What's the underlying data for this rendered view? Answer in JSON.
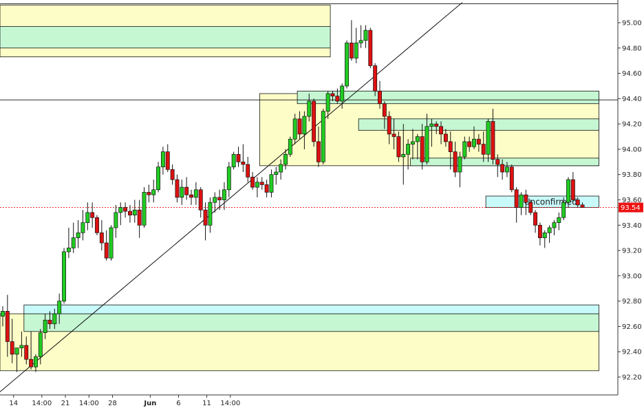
{
  "chart_data": {
    "type": "candlestick",
    "y_axis": {
      "position": "right",
      "ylim": [
        92.06,
        95.16
      ],
      "ticks": [
        "95.00",
        "94.80",
        "94.60",
        "94.40",
        "94.20",
        "94.00",
        "93.80",
        "93.60",
        "93.40",
        "93.20",
        "93.00",
        "92.80",
        "92.60",
        "92.40",
        "92.20"
      ]
    },
    "x_axis": {
      "tick_labels": [
        "14",
        "14:00",
        "21",
        "14:00",
        "28",
        "Jun",
        "6",
        "11",
        "14:00"
      ],
      "tick_index": [
        2,
        8,
        13,
        18,
        23,
        31,
        37,
        43,
        48
      ],
      "bold": [
        "Jun"
      ]
    },
    "current_price": {
      "value": 93.54,
      "label": "93.54",
      "color": "#ee1111"
    },
    "colors": {
      "up": "#22cc22",
      "down": "#dd1111",
      "supply_zone": "#fdfdc7",
      "demand_zone": "#c6f7d3",
      "pending_zone": "#c9fafa"
    },
    "candles": [
      [
        92.68,
        92.76,
        92.6,
        92.72
      ],
      [
        92.72,
        92.85,
        92.36,
        92.48
      ],
      [
        92.48,
        92.66,
        92.31,
        92.38
      ],
      [
        92.38,
        92.43,
        92.24,
        92.43
      ],
      [
        92.43,
        92.56,
        92.36,
        92.45
      ],
      [
        92.45,
        92.52,
        92.3,
        92.34
      ],
      [
        92.34,
        92.56,
        92.26,
        92.28
      ],
      [
        92.28,
        92.38,
        92.24,
        92.36
      ],
      [
        92.36,
        92.58,
        92.3,
        92.55
      ],
      [
        92.55,
        92.7,
        92.5,
        92.65
      ],
      [
        92.65,
        92.72,
        92.58,
        92.62
      ],
      [
        92.62,
        92.74,
        92.58,
        92.7
      ],
      [
        92.7,
        92.86,
        92.62,
        92.8
      ],
      [
        92.8,
        93.22,
        92.78,
        93.19
      ],
      [
        93.19,
        93.38,
        93.14,
        93.22
      ],
      [
        93.22,
        93.42,
        93.18,
        93.3
      ],
      [
        93.3,
        93.44,
        93.22,
        93.34
      ],
      [
        93.34,
        93.52,
        93.28,
        93.42
      ],
      [
        93.42,
        93.58,
        93.36,
        93.5
      ],
      [
        93.5,
        93.58,
        93.38,
        93.46
      ],
      [
        93.46,
        93.48,
        93.32,
        93.34
      ],
      [
        93.34,
        93.44,
        93.2,
        93.26
      ],
      [
        93.26,
        93.36,
        93.12,
        93.14
      ],
      [
        93.14,
        93.4,
        93.12,
        93.38
      ],
      [
        93.38,
        93.56,
        93.3,
        93.5
      ],
      [
        93.5,
        93.58,
        93.4,
        93.54
      ],
      [
        93.54,
        93.58,
        93.46,
        93.51
      ],
      [
        93.51,
        93.56,
        93.42,
        93.48
      ],
      [
        93.48,
        93.6,
        93.42,
        93.52
      ],
      [
        93.52,
        93.6,
        93.3,
        93.4
      ],
      [
        93.4,
        93.7,
        93.38,
        93.66
      ],
      [
        93.66,
        93.72,
        93.58,
        93.64
      ],
      [
        93.64,
        93.76,
        93.58,
        93.68
      ],
      [
        93.68,
        93.9,
        93.66,
        93.86
      ],
      [
        93.86,
        94.02,
        93.8,
        93.98
      ],
      [
        93.98,
        94.04,
        93.82,
        93.84
      ],
      [
        93.84,
        93.88,
        93.72,
        93.76
      ],
      [
        93.76,
        93.8,
        93.58,
        93.62
      ],
      [
        93.62,
        93.76,
        93.56,
        93.7
      ],
      [
        93.7,
        93.78,
        93.6,
        93.64
      ],
      [
        93.64,
        93.68,
        93.56,
        93.62
      ],
      [
        93.62,
        93.74,
        93.56,
        93.68
      ],
      [
        93.68,
        93.7,
        93.46,
        93.52
      ],
      [
        93.52,
        93.58,
        93.28,
        93.4
      ],
      [
        93.4,
        93.62,
        93.34,
        93.58
      ],
      [
        93.58,
        93.66,
        93.5,
        93.62
      ],
      [
        93.62,
        93.68,
        93.52,
        93.6
      ],
      [
        93.6,
        93.74,
        93.52,
        93.68
      ],
      [
        93.68,
        93.9,
        93.62,
        93.86
      ],
      [
        93.86,
        93.98,
        93.84,
        93.96
      ],
      [
        93.96,
        94.02,
        93.86,
        93.9
      ],
      [
        93.9,
        94.04,
        93.82,
        93.88
      ],
      [
        93.88,
        93.94,
        93.74,
        93.78
      ],
      [
        93.78,
        93.82,
        93.68,
        93.7
      ],
      [
        93.7,
        93.78,
        93.62,
        93.74
      ],
      [
        93.74,
        93.78,
        93.68,
        93.72
      ],
      [
        93.72,
        93.76,
        93.62,
        93.66
      ],
      [
        93.66,
        93.84,
        93.62,
        93.8
      ],
      [
        93.8,
        93.86,
        93.72,
        93.82
      ],
      [
        93.82,
        93.92,
        93.76,
        93.88
      ],
      [
        93.88,
        94.0,
        93.84,
        93.96
      ],
      [
        93.96,
        94.1,
        93.94,
        94.08
      ],
      [
        94.08,
        94.28,
        94.04,
        94.24
      ],
      [
        94.24,
        94.3,
        94.08,
        94.12
      ],
      [
        94.12,
        94.3,
        94.0,
        94.26
      ],
      [
        94.26,
        94.44,
        94.22,
        94.38
      ],
      [
        94.38,
        94.4,
        94.02,
        94.06
      ],
      [
        94.06,
        94.18,
        93.86,
        93.9
      ],
      [
        93.9,
        94.32,
        93.88,
        94.3
      ],
      [
        94.3,
        94.46,
        94.24,
        94.44
      ],
      [
        94.44,
        94.46,
        94.38,
        94.42
      ],
      [
        94.42,
        94.48,
        94.36,
        94.38
      ],
      [
        94.38,
        94.52,
        94.32,
        94.5
      ],
      [
        94.5,
        94.86,
        94.48,
        94.84
      ],
      [
        94.84,
        95.02,
        94.7,
        94.72
      ],
      [
        94.72,
        94.96,
        94.68,
        94.84
      ],
      [
        94.84,
        94.98,
        94.8,
        94.86
      ],
      [
        94.86,
        94.98,
        94.8,
        94.94
      ],
      [
        94.94,
        94.96,
        94.64,
        94.66
      ],
      [
        94.66,
        94.68,
        94.42,
        94.46
      ],
      [
        94.46,
        94.54,
        94.32,
        94.36
      ],
      [
        94.36,
        94.38,
        94.16,
        94.26
      ],
      [
        94.26,
        94.3,
        94.04,
        94.12
      ],
      [
        94.12,
        94.24,
        94.0,
        94.1
      ],
      [
        94.1,
        94.14,
        93.9,
        93.94
      ],
      [
        93.94,
        94.2,
        93.72,
        93.96
      ],
      [
        93.96,
        94.08,
        93.84,
        94.04
      ],
      [
        94.04,
        94.16,
        93.92,
        94.06
      ],
      [
        94.06,
        94.12,
        93.92,
        94.1
      ],
      [
        94.1,
        94.2,
        93.84,
        93.9
      ],
      [
        93.9,
        94.28,
        93.88,
        94.18
      ],
      [
        94.18,
        94.24,
        94.02,
        94.2
      ],
      [
        94.2,
        94.22,
        94.12,
        94.18
      ],
      [
        94.18,
        94.22,
        94.04,
        94.12
      ],
      [
        94.12,
        94.16,
        94.02,
        94.06
      ],
      [
        94.06,
        94.14,
        93.84,
        93.98
      ],
      [
        93.98,
        94.06,
        93.78,
        93.82
      ],
      [
        93.82,
        93.98,
        93.7,
        93.94
      ],
      [
        93.94,
        94.1,
        93.92,
        94.06
      ],
      [
        94.06,
        94.1,
        93.98,
        94.02
      ],
      [
        94.02,
        94.18,
        94.0,
        94.08
      ],
      [
        94.08,
        94.12,
        93.98,
        94.04
      ],
      [
        94.04,
        94.14,
        93.9,
        93.96
      ],
      [
        93.96,
        94.24,
        93.9,
        94.22
      ],
      [
        94.22,
        94.32,
        93.88,
        93.92
      ],
      [
        93.92,
        93.96,
        93.78,
        93.88
      ],
      [
        93.88,
        93.92,
        93.76,
        93.82
      ],
      [
        93.82,
        93.9,
        93.78,
        93.86
      ],
      [
        93.86,
        93.88,
        93.66,
        93.68
      ],
      [
        93.68,
        93.7,
        93.42,
        93.54
      ],
      [
        93.54,
        93.66,
        93.48,
        93.64
      ],
      [
        93.64,
        93.68,
        93.48,
        93.58
      ],
      [
        93.58,
        93.6,
        93.48,
        93.5
      ],
      [
        93.5,
        93.52,
        93.34,
        93.4
      ],
      [
        93.4,
        93.42,
        93.24,
        93.3
      ],
      [
        93.3,
        93.36,
        93.22,
        93.34
      ],
      [
        93.34,
        93.4,
        93.26,
        93.38
      ],
      [
        93.38,
        93.44,
        93.32,
        93.42
      ],
      [
        93.42,
        93.5,
        93.36,
        93.46
      ],
      [
        93.46,
        93.62,
        93.44,
        93.58
      ],
      [
        93.58,
        93.78,
        93.54,
        93.76
      ],
      [
        93.76,
        93.82,
        93.58,
        93.6
      ],
      [
        93.6,
        93.62,
        93.54,
        93.56
      ],
      [
        93.56,
        93.58,
        93.54,
        93.54
      ]
    ],
    "zones": [
      {
        "type": "supply",
        "x0": -1,
        "x1": 69.5,
        "y0": 94.73,
        "y1": 95.14
      },
      {
        "type": "demand",
        "x0": -1,
        "x1": 69.5,
        "y0": 94.8,
        "y1": 94.97
      },
      {
        "type": "supply",
        "x0": 54.5,
        "x1": 126.5,
        "y0": 93.87,
        "y1": 94.44
      },
      {
        "type": "demand",
        "x0": 62.5,
        "x1": 126.5,
        "y0": 94.36,
        "y1": 94.46
      },
      {
        "type": "demand",
        "x0": 75.5,
        "x1": 126.5,
        "y0": 94.15,
        "y1": 94.24
      },
      {
        "type": "demand",
        "x0": 86.5,
        "x1": 126.5,
        "y0": 93.87,
        "y1": 93.93
      },
      {
        "type": "supply",
        "x0": -1,
        "x1": 126.5,
        "y0": 92.25,
        "y1": 92.7
      },
      {
        "type": "demand",
        "x0": 4.5,
        "x1": 126.5,
        "y0": 92.56,
        "y1": 92.7
      },
      {
        "type": "pending",
        "x0": 4.5,
        "x1": 126.5,
        "y0": 92.7,
        "y1": 92.77
      },
      {
        "type": "pending",
        "x0": 102.5,
        "x1": 126.5,
        "y0": 93.54,
        "y1": 93.63,
        "label": "Unconfirmed"
      }
    ],
    "hlines": [
      95.15,
      94.39
    ],
    "trendline": {
      "x0": -1,
      "y0": 92.07,
      "x1": 97.5,
      "y1": 95.16
    }
  }
}
